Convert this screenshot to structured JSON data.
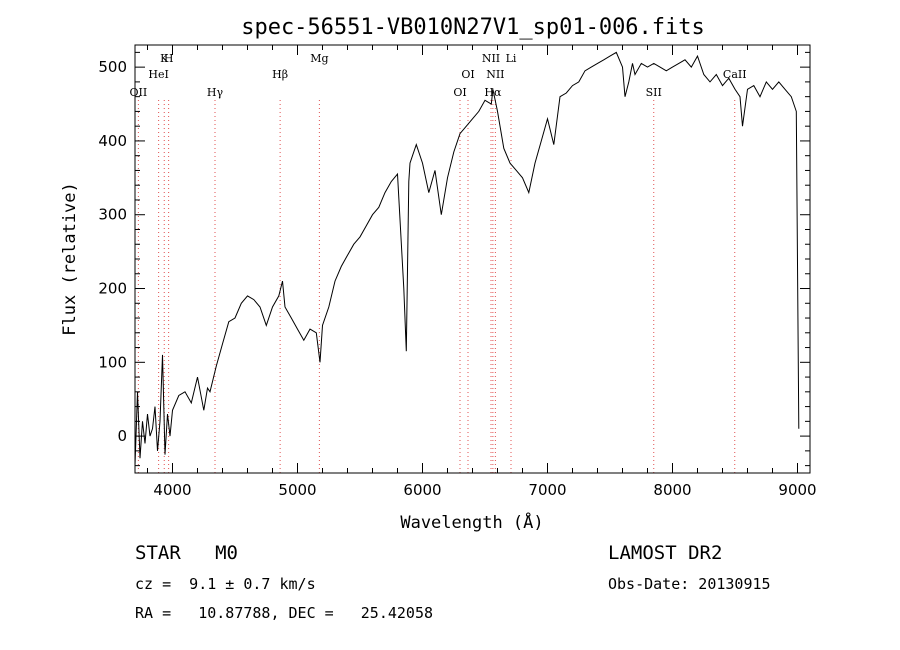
{
  "chart_data": {
    "type": "line",
    "title": "spec-56551-VB010N27V1_sp01-006.fits",
    "xlabel": "Wavelength (Å)",
    "ylabel": "Flux (relative)",
    "xlim": [
      3700,
      9100
    ],
    "ylim": [
      -50,
      530
    ],
    "xticks": [
      4000,
      5000,
      6000,
      7000,
      8000,
      9000
    ],
    "yticks": [
      0,
      100,
      200,
      300,
      400,
      500
    ],
    "grid": false,
    "series": [
      {
        "x": [
          3700,
          3720,
          3740,
          3760,
          3780,
          3800,
          3820,
          3840,
          3860,
          3880,
          3900,
          3920,
          3940,
          3960,
          3980,
          4000,
          4050,
          4100,
          4150,
          4200,
          4250,
          4280,
          4300,
          4350,
          4400,
          4450,
          4500,
          4550,
          4600,
          4650,
          4700,
          4750,
          4800,
          4850,
          4880,
          4900,
          4950,
          5000,
          5050,
          5100,
          5150,
          5180,
          5200,
          5250,
          5300,
          5350,
          5400,
          5450,
          5500,
          5550,
          5600,
          5650,
          5700,
          5750,
          5800,
          5850,
          5870,
          5890,
          5900,
          5920,
          5950,
          6000,
          6050,
          6100,
          6150,
          6200,
          6250,
          6300,
          6350,
          6400,
          6450,
          6500,
          6550,
          6563,
          6600,
          6650,
          6700,
          6750,
          6800,
          6850,
          6900,
          6950,
          7000,
          7050,
          7100,
          7150,
          7200,
          7250,
          7300,
          7350,
          7400,
          7450,
          7500,
          7550,
          7600,
          7620,
          7650,
          7680,
          7700,
          7750,
          7800,
          7850,
          7900,
          7950,
          8000,
          8050,
          8100,
          8150,
          8200,
          8250,
          8300,
          8350,
          8400,
          8450,
          8500,
          8540,
          8560,
          8600,
          8650,
          8700,
          8750,
          8800,
          8850,
          8900,
          8950,
          8990,
          9010
        ],
        "y": [
          -40,
          60,
          -30,
          20,
          -10,
          30,
          0,
          10,
          40,
          -20,
          20,
          110,
          -25,
          30,
          0,
          35,
          55,
          60,
          45,
          80,
          35,
          65,
          60,
          95,
          125,
          155,
          160,
          180,
          190,
          185,
          175,
          150,
          175,
          190,
          210,
          175,
          160,
          145,
          130,
          145,
          140,
          100,
          150,
          175,
          210,
          230,
          245,
          260,
          270,
          285,
          300,
          310,
          330,
          345,
          355,
          200,
          115,
          345,
          370,
          380,
          395,
          370,
          330,
          360,
          300,
          350,
          385,
          410,
          420,
          430,
          440,
          455,
          450,
          470,
          440,
          390,
          370,
          360,
          350,
          330,
          370,
          400,
          430,
          395,
          460,
          465,
          475,
          480,
          495,
          500,
          505,
          510,
          515,
          520,
          500,
          460,
          480,
          505,
          490,
          505,
          500,
          505,
          500,
          495,
          500,
          505,
          510,
          500,
          515,
          490,
          480,
          490,
          475,
          485,
          470,
          460,
          420,
          470,
          475,
          460,
          480,
          470,
          480,
          470,
          460,
          440,
          10
        ]
      }
    ],
    "line_markers": [
      {
        "label": "OII",
        "x": 3727,
        "row": 3
      },
      {
        "label": "K",
        "x": 3934,
        "row": 1
      },
      {
        "label": "H",
        "x": 3969,
        "row": 1
      },
      {
        "label": "HeI",
        "x": 3889,
        "row": 2
      },
      {
        "label": "Hγ",
        "x": 4340,
        "row": 3
      },
      {
        "label": "Hβ",
        "x": 4861,
        "row": 2
      },
      {
        "label": "Mg",
        "x": 5175,
        "row": 1
      },
      {
        "label": "OI",
        "x": 6300,
        "row": 3
      },
      {
        "label": "OI",
        "x": 6364,
        "row": 2
      },
      {
        "label": "NII",
        "x": 6548,
        "row": 1
      },
      {
        "label": "NII",
        "x": 6583,
        "row": 2
      },
      {
        "label": "Hα",
        "x": 6563,
        "row": 3
      },
      {
        "label": "Li",
        "x": 6708,
        "row": 1
      },
      {
        "label": "SII",
        "x": 7850,
        "row": 3
      },
      {
        "label": "CaII",
        "x": 8498,
        "row": 2
      }
    ]
  },
  "info": {
    "object_class": "STAR",
    "subclass": "M0",
    "survey": "LAMOST DR2",
    "redshift": "cz =  9.1 ± 0.7 km/s",
    "obs_date": "Obs-Date: 20130915",
    "coords": "RA =   10.87788, DEC =   25.42058"
  },
  "colors": {
    "spectrum": "#000000",
    "marker_line": "#e05050"
  }
}
